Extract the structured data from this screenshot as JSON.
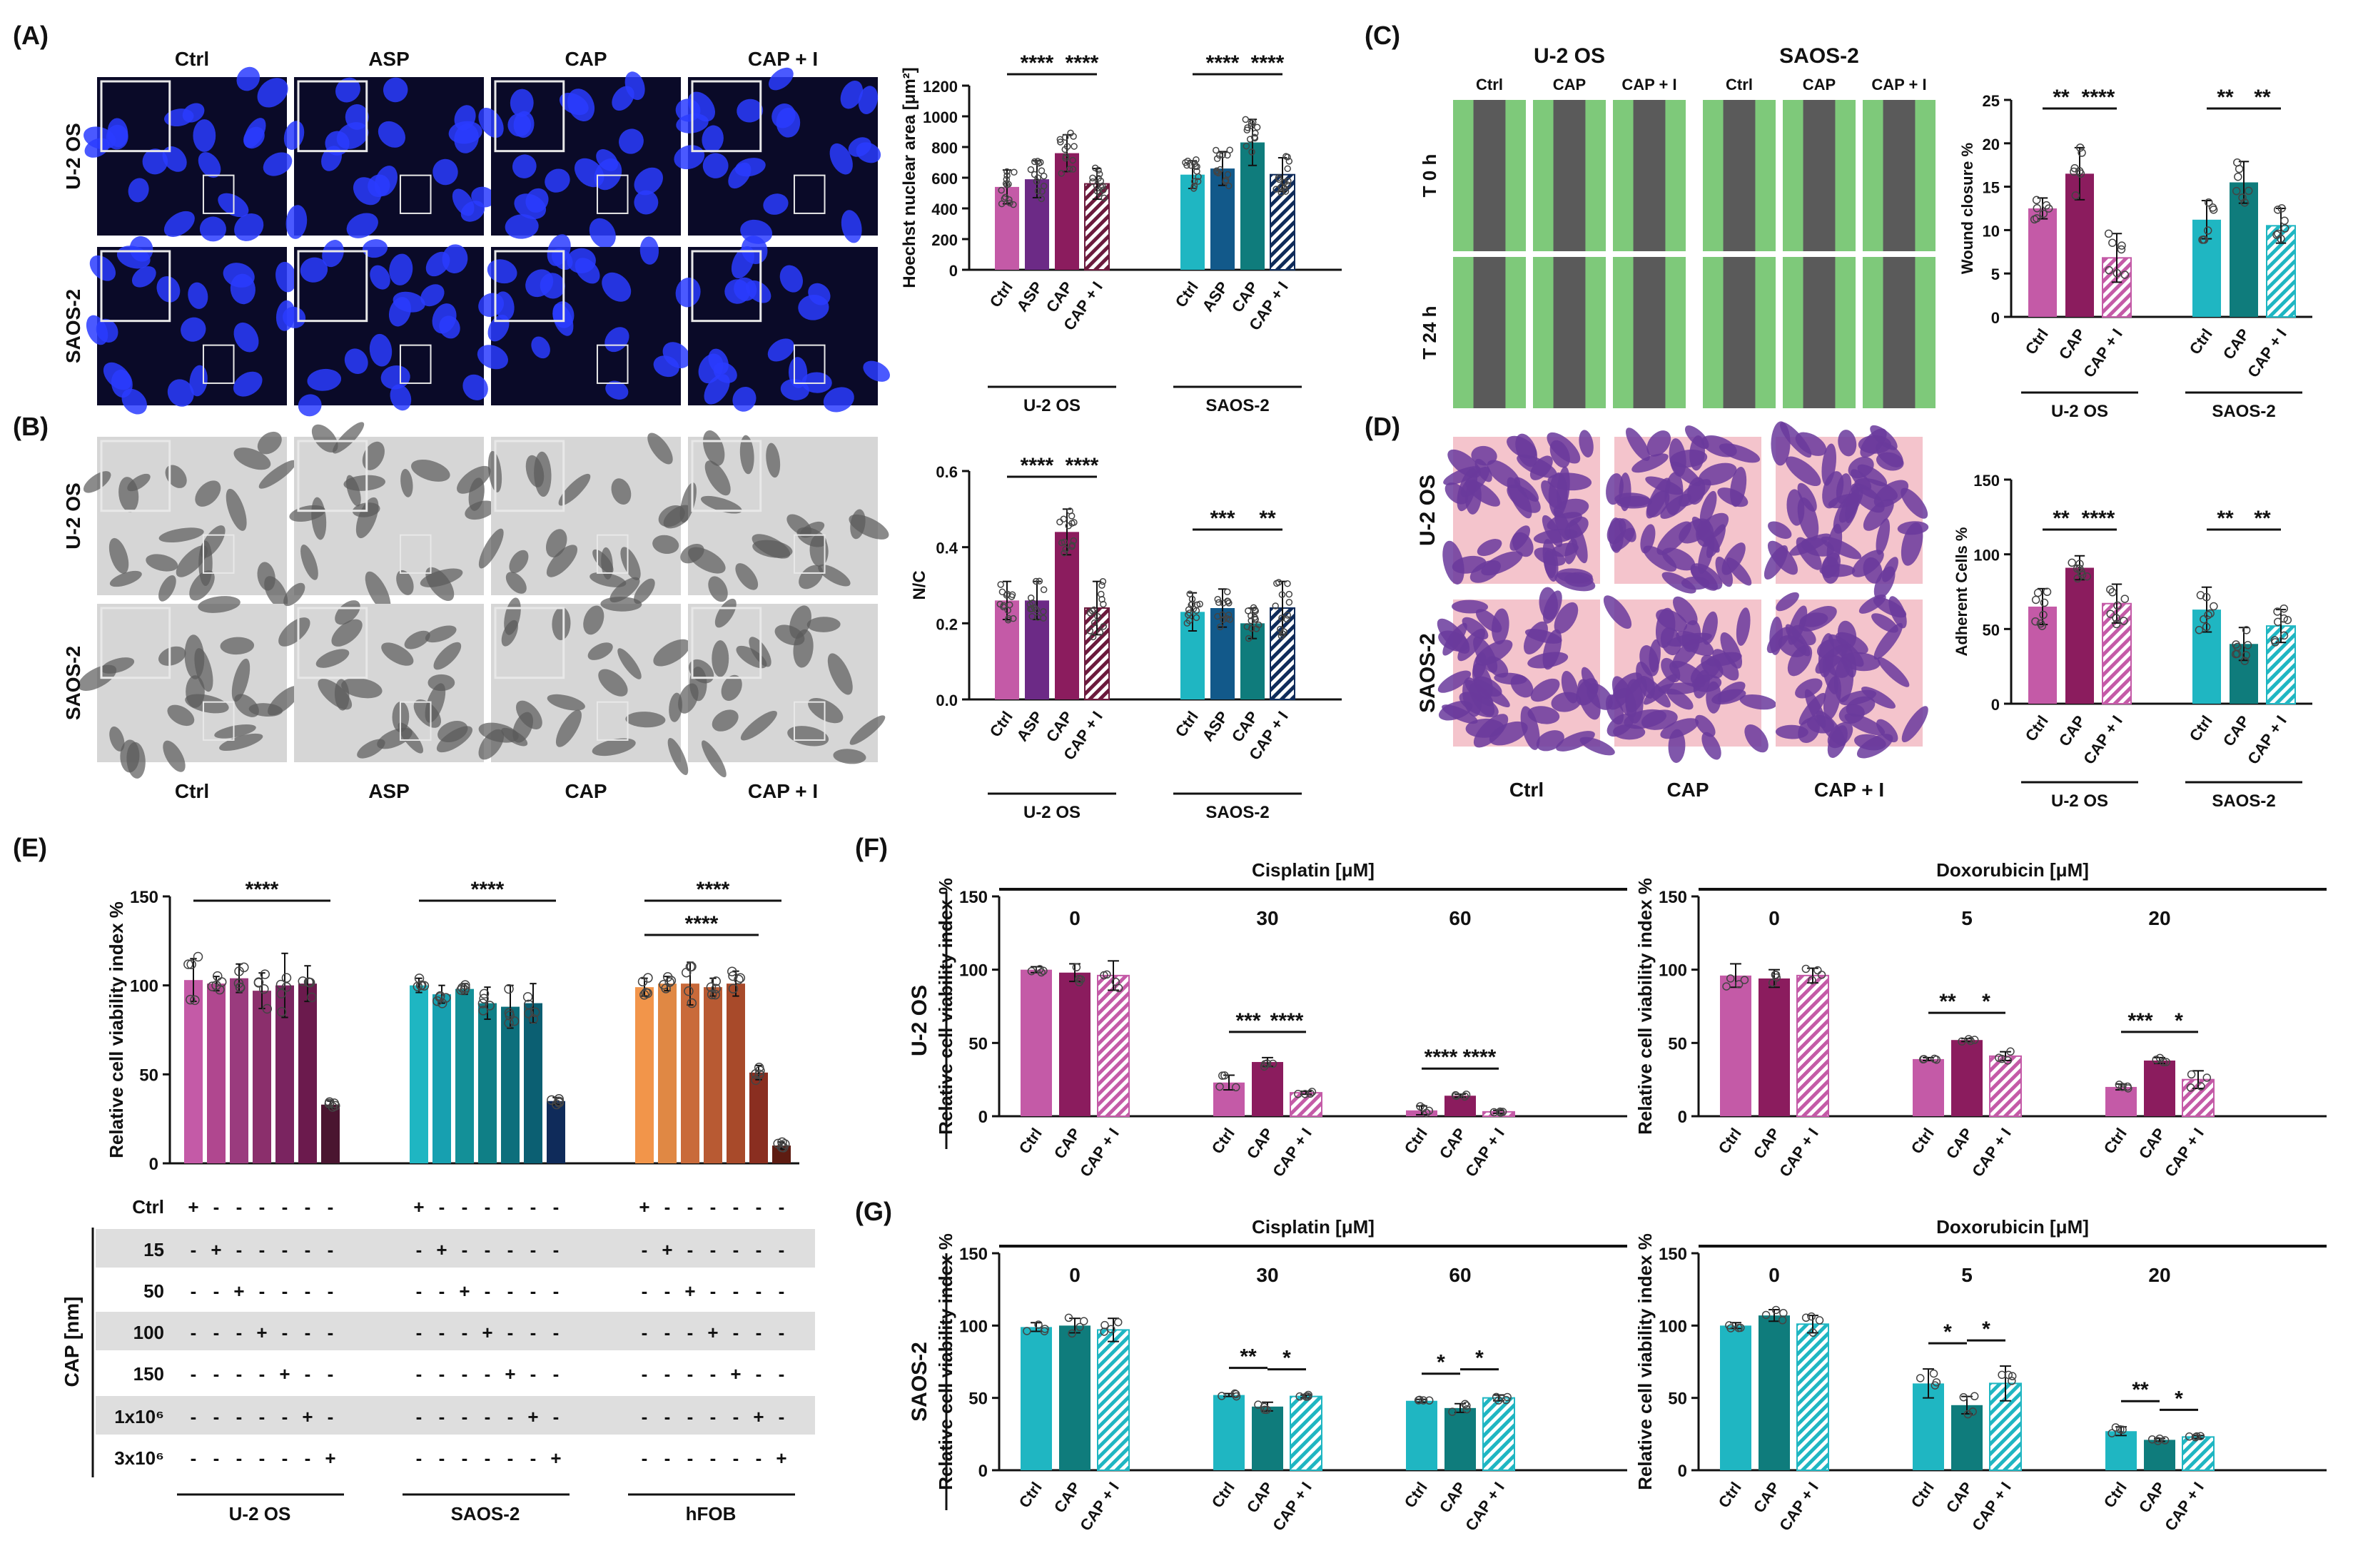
{
  "panel_letters": [
    "(A)",
    "(B)",
    "(C)",
    "(D)",
    "(E)",
    "(F)",
    "(G)"
  ],
  "colors": {
    "uos_1": "#c45aa7",
    "uos_2": "#6c2a86",
    "uos_3": "#8b1c5e",
    "uos_4": "#6b1a3d",
    "saos_1": "#1fb6c2",
    "saos_2": "#12598a",
    "saos_3": "#0f7c7c",
    "saos_4": "#0f2b5a",
    "hfob_1": "#f2954a",
    "hfob_2": "#d4753c",
    "hfob_3": "#a84a2a",
    "hfob_4": "#5e1c12",
    "scratch_green": "#7ec97a",
    "scratch_gray": "#5a5a5a",
    "fluor_bg": "#0a0a28",
    "fluor_nuc": "#2a3cff",
    "bright_bg": "#d6d6d6",
    "bright_cell": "#5a5a5a",
    "crystal_bg": "#f4c4cc",
    "crystal_cell": "#6a3a9c"
  },
  "panelA": {
    "columns": [
      "Ctrl",
      "ASP",
      "CAP",
      "CAP + I"
    ],
    "rows": [
      "U-2 OS",
      "SAOS-2"
    ]
  },
  "panelB": {
    "columns": [
      "Ctrl",
      "ASP",
      "CAP",
      "CAP + I"
    ],
    "rows": [
      "U-2 OS",
      "SAOS-2"
    ]
  },
  "panelC": {
    "groups": [
      "U-2 OS",
      "SAOS-2"
    ],
    "columns": [
      "Ctrl",
      "CAP",
      "CAP + I",
      "Ctrl",
      "CAP",
      "CAP + I"
    ],
    "rows": [
      "T 0 h",
      "T 24 h"
    ]
  },
  "panelD": {
    "rows": [
      "U-2 OS",
      "SAOS-2"
    ],
    "columns": [
      "Ctrl",
      "CAP",
      "CAP + I"
    ]
  },
  "panelE_table": {
    "axis_label": "CAP [nm]",
    "rows": [
      "Ctrl",
      "15",
      "50",
      "100",
      "150",
      "1x10⁶",
      "3x10⁶"
    ],
    "groups": [
      "U-2 OS",
      "SAOS-2",
      "hFOB"
    ],
    "plus": "+",
    "minus": "-"
  },
  "row_labels_FG": [
    "U-2 OS",
    "SAOS-2"
  ],
  "chart_data": [
    {
      "id": "A",
      "type": "bar",
      "ylabel": "Hoechst nuclear area [μm²]",
      "ylim": [
        0,
        1200
      ],
      "yticks": [
        0,
        200,
        400,
        600,
        800,
        1000,
        1200
      ],
      "categories": [
        "Ctrl",
        "ASP",
        "CAP",
        "CAP + I"
      ],
      "groups": [
        {
          "name": "U-2 OS",
          "values": [
            540,
            590,
            760,
            560
          ],
          "errors": [
            110,
            120,
            120,
            100
          ]
        },
        {
          "name": "SAOS-2",
          "values": [
            620,
            660,
            830,
            620
          ],
          "errors": [
            90,
            110,
            150,
            110
          ]
        }
      ],
      "significance": [
        {
          "group": 0,
          "from": 0,
          "to": 2,
          "label": "****"
        },
        {
          "group": 0,
          "from": 2,
          "to": 3,
          "label": "****"
        },
        {
          "group": 1,
          "from": 0,
          "to": 2,
          "label": "****"
        },
        {
          "group": 1,
          "from": 2,
          "to": 3,
          "label": "****"
        }
      ]
    },
    {
      "id": "B",
      "type": "bar",
      "ylabel": "N/C",
      "ylim": [
        0,
        0.6
      ],
      "yticks": [
        0.0,
        0.2,
        0.4,
        0.6
      ],
      "categories": [
        "Ctrl",
        "ASP",
        "CAP",
        "CAP + I"
      ],
      "groups": [
        {
          "name": "U-2 OS",
          "values": [
            0.26,
            0.26,
            0.44,
            0.24
          ],
          "errors": [
            0.05,
            0.05,
            0.06,
            0.07
          ]
        },
        {
          "name": "SAOS-2",
          "values": [
            0.23,
            0.24,
            0.2,
            0.24
          ],
          "errors": [
            0.05,
            0.05,
            0.04,
            0.07
          ]
        }
      ],
      "significance": [
        {
          "group": 0,
          "from": 0,
          "to": 2,
          "label": "****"
        },
        {
          "group": 0,
          "from": 2,
          "to": 3,
          "label": "****"
        },
        {
          "group": 1,
          "from": 0,
          "to": 2,
          "label": "***"
        },
        {
          "group": 1,
          "from": 2,
          "to": 3,
          "label": "**"
        }
      ]
    },
    {
      "id": "C",
      "type": "bar",
      "ylabel": "Wound closure %",
      "ylim": [
        0,
        25
      ],
      "yticks": [
        0,
        5,
        10,
        15,
        20,
        25
      ],
      "categories": [
        "Ctrl",
        "CAP",
        "CAP + I"
      ],
      "groups": [
        {
          "name": "U-2 OS",
          "values": [
            12.5,
            16.5,
            6.8
          ],
          "errors": [
            1.2,
            3.0,
            2.8
          ]
        },
        {
          "name": "SAOS-2",
          "values": [
            11.2,
            15.5,
            10.5
          ],
          "errors": [
            2.2,
            2.4,
            2.0
          ]
        }
      ],
      "significance": [
        {
          "group": 0,
          "from": 0,
          "to": 1,
          "label": "**"
        },
        {
          "group": 0,
          "from": 1,
          "to": 2,
          "label": "****"
        },
        {
          "group": 1,
          "from": 0,
          "to": 1,
          "label": "**"
        },
        {
          "group": 1,
          "from": 1,
          "to": 2,
          "label": "**"
        }
      ]
    },
    {
      "id": "D",
      "type": "bar",
      "ylabel": "Adherent Cells %",
      "ylim": [
        0,
        150
      ],
      "yticks": [
        0,
        50,
        100,
        150
      ],
      "categories": [
        "Ctrl",
        "CAP",
        "CAP + I"
      ],
      "groups": [
        {
          "name": "U-2 OS",
          "values": [
            65,
            91,
            67
          ],
          "errors": [
            12,
            8,
            13
          ]
        },
        {
          "name": "SAOS-2",
          "values": [
            63,
            40,
            52
          ],
          "errors": [
            15,
            11,
            11
          ]
        }
      ],
      "significance": [
        {
          "group": 0,
          "from": 0,
          "to": 1,
          "label": "**"
        },
        {
          "group": 0,
          "from": 1,
          "to": 2,
          "label": "****"
        },
        {
          "group": 1,
          "from": 0,
          "to": 1,
          "label": "**"
        },
        {
          "group": 1,
          "from": 1,
          "to": 2,
          "label": "**"
        }
      ]
    },
    {
      "id": "E",
      "type": "bar",
      "ylabel": "Relative cell viability index %",
      "ylim": [
        0,
        150
      ],
      "yticks": [
        0,
        50,
        100,
        150
      ],
      "categories": [
        "Ctrl",
        "15",
        "50",
        "100",
        "150",
        "1x10⁶",
        "3x10⁶"
      ],
      "groups": [
        {
          "name": "U-2 OS",
          "values": [
            103,
            101,
            104,
            97,
            100,
            101,
            33
          ],
          "errors": [
            12,
            4,
            8,
            10,
            18,
            10,
            2
          ]
        },
        {
          "name": "SAOS-2",
          "values": [
            100,
            95,
            98,
            90,
            88,
            90,
            35
          ],
          "errors": [
            4,
            5,
            3,
            9,
            12,
            11,
            2
          ]
        },
        {
          "name": "hFOB",
          "values": [
            99,
            101,
            101,
            99,
            101,
            51,
            10
          ],
          "errors": [
            5,
            4,
            12,
            5,
            7,
            4,
            2
          ]
        }
      ],
      "significance": [
        {
          "group": 0,
          "from": 0,
          "to": 6,
          "label": "****"
        },
        {
          "group": 1,
          "from": 0,
          "to": 6,
          "label": "****"
        },
        {
          "group": 2,
          "from": 0,
          "to": 6,
          "label": "****"
        },
        {
          "group": 2,
          "from": 0,
          "to": 5,
          "label": "****"
        }
      ]
    },
    {
      "id": "F1",
      "type": "bar",
      "title": "Cisplatin [μM]",
      "ylabel": "Relative cell viability index %",
      "ylim": [
        0,
        150
      ],
      "yticks": [
        0,
        50,
        100,
        150
      ],
      "categories": [
        "Ctrl",
        "CAP",
        "CAP + I"
      ],
      "groups": [
        {
          "name": "0",
          "values": [
            100,
            98,
            96
          ],
          "errors": [
            2,
            6,
            10
          ]
        },
        {
          "name": "30",
          "values": [
            23,
            37,
            16
          ],
          "errors": [
            5,
            3,
            1
          ]
        },
        {
          "name": "60",
          "values": [
            4,
            14,
            3
          ],
          "errors": [
            3,
            1,
            1
          ]
        }
      ],
      "significance": [
        {
          "group": 1,
          "from": 0,
          "to": 1,
          "label": "***"
        },
        {
          "group": 1,
          "from": 1,
          "to": 2,
          "label": "****"
        },
        {
          "group": 2,
          "from": 0,
          "to": 1,
          "label": "****"
        },
        {
          "group": 2,
          "from": 1,
          "to": 2,
          "label": "****"
        }
      ]
    },
    {
      "id": "F2",
      "type": "bar",
      "title": "Doxorubicin [μM]",
      "ylabel": "Relative cell viability index %",
      "ylim": [
        0,
        150
      ],
      "yticks": [
        0,
        50,
        100,
        150
      ],
      "categories": [
        "Ctrl",
        "CAP",
        "CAP + I"
      ],
      "groups": [
        {
          "name": "0",
          "values": [
            96,
            94,
            96
          ],
          "errors": [
            8,
            6,
            5
          ]
        },
        {
          "name": "5",
          "values": [
            39,
            52,
            41
          ],
          "errors": [
            1,
            1,
            3
          ]
        },
        {
          "name": "20",
          "values": [
            20,
            38,
            25
          ],
          "errors": [
            2,
            2,
            6
          ]
        }
      ],
      "significance": [
        {
          "group": 1,
          "from": 0,
          "to": 1,
          "label": "**"
        },
        {
          "group": 1,
          "from": 1,
          "to": 2,
          "label": "*"
        },
        {
          "group": 2,
          "from": 0,
          "to": 1,
          "label": "***"
        },
        {
          "group": 2,
          "from": 1,
          "to": 2,
          "label": "*"
        }
      ]
    },
    {
      "id": "G1",
      "type": "bar",
      "title": "Cisplatin [μM]",
      "ylabel": "Relative cell viability index %",
      "ylim": [
        0,
        150
      ],
      "yticks": [
        0,
        50,
        100,
        150
      ],
      "categories": [
        "Ctrl",
        "CAP",
        "CAP + I"
      ],
      "groups": [
        {
          "name": "0",
          "values": [
            99,
            100,
            97
          ],
          "errors": [
            3,
            5,
            8
          ]
        },
        {
          "name": "30",
          "values": [
            52,
            44,
            51
          ],
          "errors": [
            1,
            3,
            1
          ]
        },
        {
          "name": "60",
          "values": [
            48,
            43,
            50
          ],
          "errors": [
            1,
            3,
            2
          ]
        }
      ],
      "significance": [
        {
          "group": 1,
          "from": 0,
          "to": 1,
          "label": "**"
        },
        {
          "group": 1,
          "from": 1,
          "to": 2,
          "label": "*"
        },
        {
          "group": 2,
          "from": 0,
          "to": 1,
          "label": "*"
        },
        {
          "group": 2,
          "from": 1,
          "to": 2,
          "label": "*"
        }
      ]
    },
    {
      "id": "G2",
      "type": "bar",
      "title": "Doxorubicin [μM]",
      "ylabel": "Relative cell viability index %",
      "ylim": [
        0,
        150
      ],
      "yticks": [
        0,
        50,
        100,
        150
      ],
      "categories": [
        "Ctrl",
        "CAP",
        "CAP + I"
      ],
      "groups": [
        {
          "name": "0",
          "values": [
            100,
            107,
            101
          ],
          "errors": [
            2,
            4,
            6
          ]
        },
        {
          "name": "5",
          "values": [
            60,
            45,
            60
          ],
          "errors": [
            10,
            6,
            12
          ]
        },
        {
          "name": "20",
          "values": [
            27,
            21,
            23
          ],
          "errors": [
            3,
            1,
            1
          ]
        }
      ],
      "significance": [
        {
          "group": 1,
          "from": 0,
          "to": 1,
          "label": "*"
        },
        {
          "group": 1,
          "from": 1,
          "to": 2,
          "label": "*"
        },
        {
          "group": 2,
          "from": 0,
          "to": 1,
          "label": "**"
        },
        {
          "group": 2,
          "from": 1,
          "to": 2,
          "label": "*"
        }
      ]
    }
  ]
}
